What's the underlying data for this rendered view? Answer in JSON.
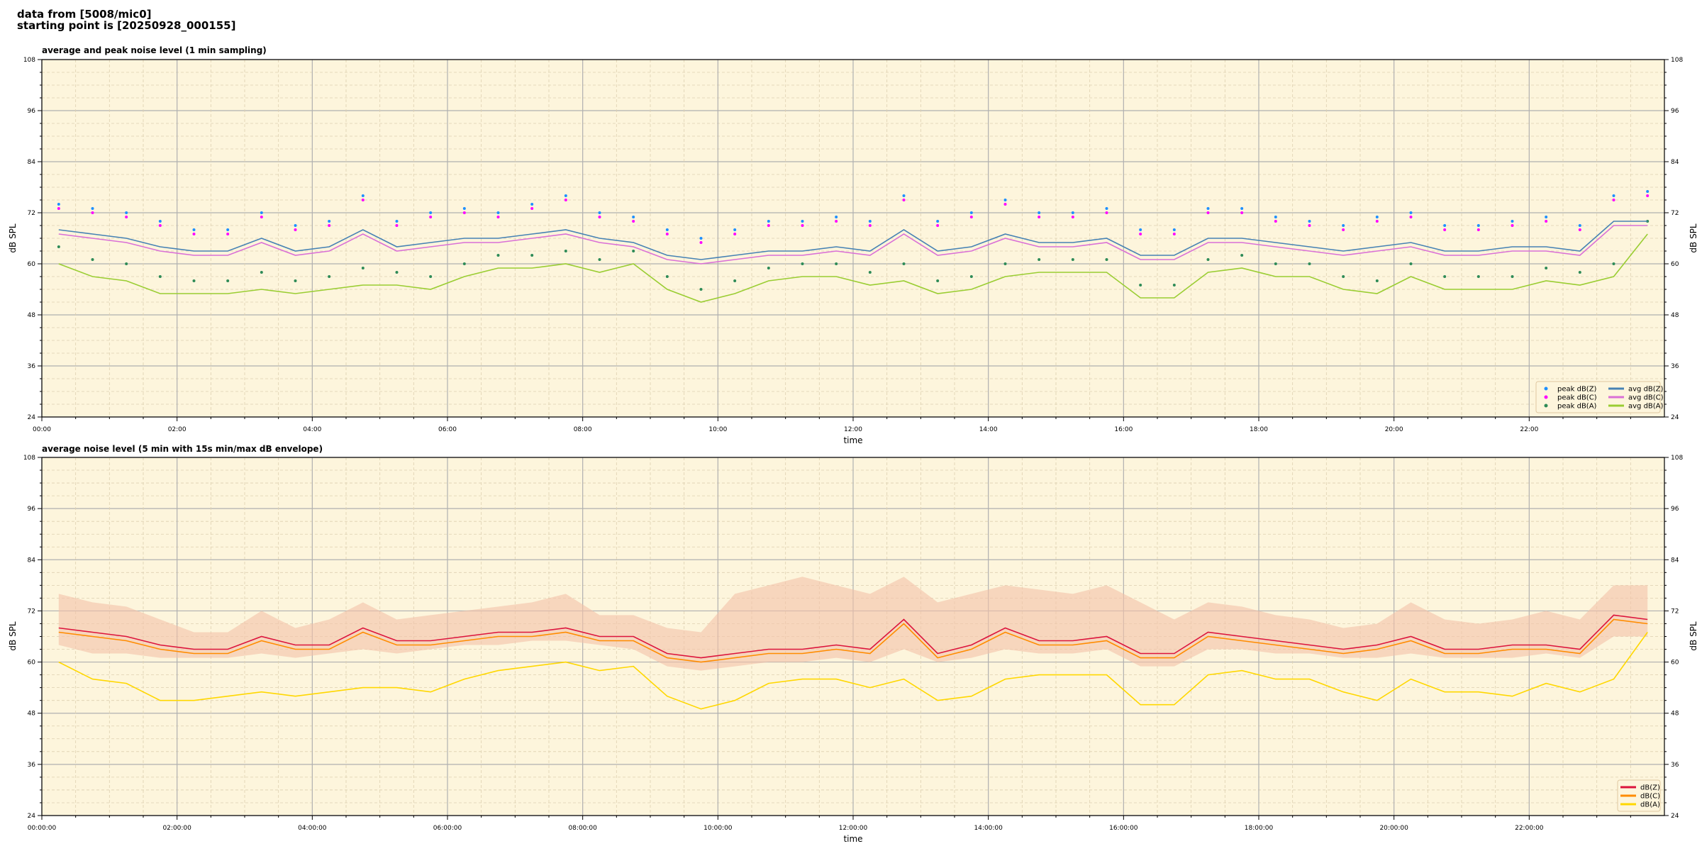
{
  "header": {
    "line1": "data from [5008/mic0]",
    "line2": "starting point is [20250928_000155]"
  },
  "chart_data": [
    {
      "type": "line",
      "title": "average and peak noise level (1 min sampling)",
      "xlabel": "time",
      "ylabel": "dB SPL",
      "xlim_hours": [
        0,
        24
      ],
      "ylim": [
        24,
        108
      ],
      "yticks": [
        24,
        36,
        48,
        60,
        72,
        84,
        96,
        108
      ],
      "xtick_labels": [
        "00:00",
        "02:00",
        "04:00",
        "06:00",
        "08:00",
        "10:00",
        "12:00",
        "14:00",
        "16:00",
        "18:00",
        "20:00",
        "22:00"
      ],
      "grid": true,
      "legend_position": "bottom-right",
      "x_step_hours": 0.5,
      "series": [
        {
          "name": "peak dB(Z)",
          "kind": "scatter",
          "color": "#1e90ff",
          "values": [
            74,
            73,
            72,
            70,
            68,
            68,
            72,
            69,
            70,
            76,
            70,
            72,
            73,
            72,
            74,
            76,
            72,
            71,
            68,
            66,
            68,
            70,
            70,
            71,
            70,
            76,
            70,
            72,
            75,
            72,
            72,
            73,
            68,
            68,
            73,
            73,
            71,
            70,
            69,
            71,
            72,
            69,
            69,
            70,
            71,
            69,
            76,
            77
          ]
        },
        {
          "name": "peak dB(C)",
          "kind": "scatter",
          "color": "#ff00ff",
          "values": [
            73,
            72,
            71,
            69,
            67,
            67,
            71,
            68,
            69,
            75,
            69,
            71,
            72,
            71,
            73,
            75,
            71,
            70,
            67,
            65,
            67,
            69,
            69,
            70,
            69,
            75,
            69,
            71,
            74,
            71,
            71,
            72,
            67,
            67,
            72,
            72,
            70,
            69,
            68,
            70,
            71,
            68,
            68,
            69,
            70,
            68,
            75,
            76
          ]
        },
        {
          "name": "peak dB(A)",
          "kind": "scatter",
          "color": "#2e8b57",
          "values": [
            64,
            61,
            60,
            57,
            56,
            56,
            58,
            56,
            57,
            59,
            58,
            57,
            60,
            62,
            62,
            63,
            61,
            63,
            57,
            54,
            56,
            59,
            60,
            60,
            58,
            60,
            56,
            57,
            60,
            61,
            61,
            61,
            55,
            55,
            61,
            62,
            60,
            60,
            57,
            56,
            60,
            57,
            57,
            57,
            59,
            58,
            60,
            70
          ]
        },
        {
          "name": "avg dB(Z)",
          "kind": "line",
          "color": "#4682b4",
          "values": [
            68,
            67,
            66,
            64,
            63,
            63,
            66,
            63,
            64,
            68,
            64,
            65,
            66,
            66,
            67,
            68,
            66,
            65,
            62,
            61,
            62,
            63,
            63,
            64,
            63,
            68,
            63,
            64,
            67,
            65,
            65,
            66,
            62,
            62,
            66,
            66,
            65,
            64,
            63,
            64,
            65,
            63,
            63,
            64,
            64,
            63,
            70,
            70
          ]
        },
        {
          "name": "avg dB(C)",
          "kind": "line",
          "color": "#da70d6",
          "values": [
            67,
            66,
            65,
            63,
            62,
            62,
            65,
            62,
            63,
            67,
            63,
            64,
            65,
            65,
            66,
            67,
            65,
            64,
            61,
            60,
            61,
            62,
            62,
            63,
            62,
            67,
            62,
            63,
            66,
            64,
            64,
            65,
            61,
            61,
            65,
            65,
            64,
            63,
            62,
            63,
            64,
            62,
            62,
            63,
            63,
            62,
            69,
            69
          ]
        },
        {
          "name": "avg dB(A)",
          "kind": "line",
          "color": "#9acd32",
          "values": [
            60,
            57,
            56,
            53,
            53,
            53,
            54,
            53,
            54,
            55,
            55,
            54,
            57,
            59,
            59,
            60,
            58,
            60,
            54,
            51,
            53,
            56,
            57,
            57,
            55,
            56,
            53,
            54,
            57,
            58,
            58,
            58,
            52,
            52,
            58,
            59,
            57,
            57,
            54,
            53,
            57,
            54,
            54,
            54,
            56,
            55,
            57,
            67
          ]
        }
      ]
    },
    {
      "type": "line",
      "title": "average noise level (5 min with 15s min/max dB envelope)",
      "xlabel": "time",
      "ylabel": "dB SPL",
      "xlim_hours": [
        0,
        24
      ],
      "ylim": [
        24,
        108
      ],
      "yticks": [
        24,
        36,
        48,
        60,
        72,
        84,
        96,
        108
      ],
      "xtick_labels": [
        "00:00:00",
        "02:00:00",
        "04:00:00",
        "06:00:00",
        "08:00:00",
        "10:00:00",
        "12:00:00",
        "14:00:00",
        "16:00:00",
        "18:00:00",
        "20:00:00",
        "22:00:00"
      ],
      "grid": true,
      "legend_position": "bottom-right",
      "x_step_hours": 0.5,
      "envelope": {
        "color": "#f4c2a8",
        "max": [
          76,
          74,
          73,
          70,
          67,
          67,
          72,
          68,
          70,
          74,
          70,
          71,
          72,
          73,
          74,
          76,
          71,
          71,
          68,
          67,
          76,
          78,
          80,
          78,
          76,
          80,
          74,
          76,
          78,
          77,
          76,
          78,
          74,
          70,
          74,
          73,
          71,
          70,
          68,
          69,
          74,
          70,
          69,
          70,
          72,
          70,
          78,
          78
        ],
        "min": [
          64,
          62,
          62,
          61,
          61,
          61,
          62,
          61,
          62,
          63,
          62,
          63,
          64,
          64,
          65,
          65,
          64,
          63,
          59,
          58,
          59,
          60,
          60,
          61,
          60,
          63,
          60,
          61,
          63,
          62,
          62,
          63,
          59,
          59,
          63,
          63,
          62,
          62,
          61,
          61,
          62,
          61,
          61,
          61,
          62,
          61,
          66,
          66
        ]
      },
      "series": [
        {
          "name": "dB(Z)",
          "kind": "line",
          "color": "#dc143c",
          "values": [
            68,
            67,
            66,
            64,
            63,
            63,
            66,
            64,
            64,
            68,
            65,
            65,
            66,
            67,
            67,
            68,
            66,
            66,
            62,
            61,
            62,
            63,
            63,
            64,
            63,
            70,
            62,
            64,
            68,
            65,
            65,
            66,
            62,
            62,
            67,
            66,
            65,
            64,
            63,
            64,
            66,
            63,
            63,
            64,
            64,
            63,
            71,
            70
          ]
        },
        {
          "name": "dB(C)",
          "kind": "line",
          "color": "#ff8c00",
          "values": [
            67,
            66,
            65,
            63,
            62,
            62,
            65,
            63,
            63,
            67,
            64,
            64,
            65,
            66,
            66,
            67,
            65,
            65,
            61,
            60,
            61,
            62,
            62,
            63,
            62,
            69,
            61,
            63,
            67,
            64,
            64,
            65,
            61,
            61,
            66,
            65,
            64,
            63,
            62,
            63,
            65,
            62,
            62,
            63,
            63,
            62,
            70,
            69
          ]
        },
        {
          "name": "dB(A)",
          "kind": "line",
          "color": "#ffd700",
          "values": [
            60,
            56,
            55,
            51,
            51,
            52,
            53,
            52,
            53,
            54,
            54,
            53,
            56,
            58,
            59,
            60,
            58,
            59,
            52,
            49,
            51,
            55,
            56,
            56,
            54,
            56,
            51,
            52,
            56,
            57,
            57,
            57,
            50,
            50,
            57,
            58,
            56,
            56,
            53,
            51,
            56,
            53,
            53,
            52,
            55,
            53,
            56,
            67
          ]
        }
      ]
    }
  ]
}
